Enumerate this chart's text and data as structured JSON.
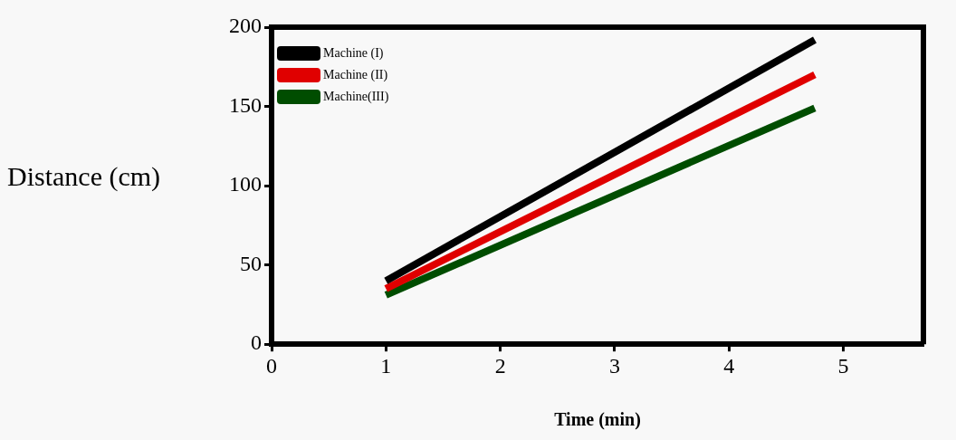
{
  "chart_data": {
    "type": "line",
    "xlabel": "Time (min)",
    "ylabel": "Distance (cm)",
    "xlim": [
      0,
      5.7
    ],
    "xticks": [
      0,
      1,
      2,
      3,
      4,
      5
    ],
    "ylim": [
      0,
      200
    ],
    "yticks": [
      0,
      50,
      100,
      150,
      200
    ],
    "x": [
      1,
      4.75
    ],
    "grid": false,
    "legend": "top left",
    "marker": "none",
    "line_style": "solid",
    "series": [
      {
        "name": "Machine (I)",
        "color": "#000000",
        "values": [
          40,
          192
        ]
      },
      {
        "name": "Machine (II)",
        "color": "#e00000",
        "values": [
          35,
          170
        ]
      },
      {
        "name": "Machine(III)",
        "color": "#004d00",
        "values": [
          31,
          149
        ]
      }
    ]
  }
}
